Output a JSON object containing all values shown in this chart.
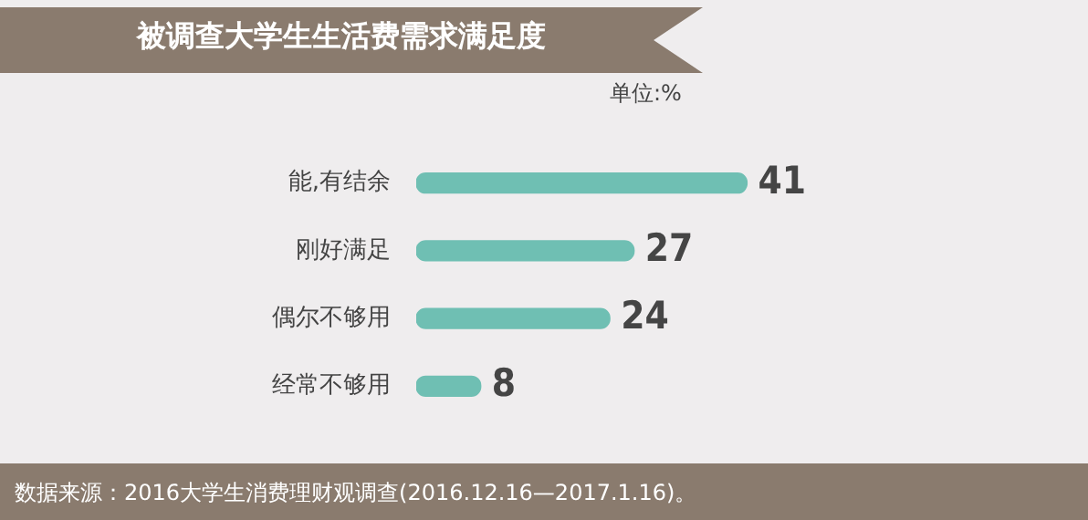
{
  "chart_data": {
    "type": "bar",
    "orientation": "horizontal",
    "title": "被调查大学生生活费需求满足度",
    "subtitle": "单位:%",
    "categories": [
      "能,有结余",
      "刚好满足",
      "偶尔不够用",
      "经常不够用"
    ],
    "values": [
      41,
      27,
      24,
      8
    ],
    "color": "#6fbfb3",
    "data_labels": true,
    "annotations": [
      "数据来源：2016大学生消费理财观调查(2016.12.16—2017.1.16)。"
    ]
  }
}
